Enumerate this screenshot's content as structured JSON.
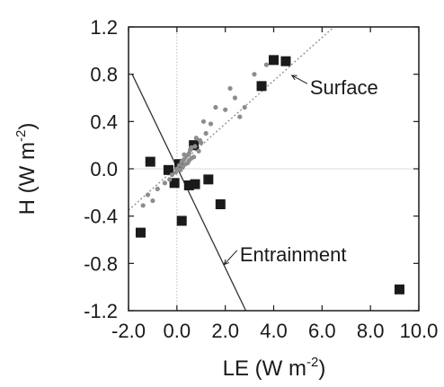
{
  "chart_data": {
    "type": "scatter",
    "xlabel": {
      "base": "LE (W m",
      "sup": "-2",
      "close": ")"
    },
    "ylabel": {
      "base": "H (W m",
      "sup": "-2",
      "close": ")"
    },
    "xlim": [
      -2.0,
      10.0
    ],
    "ylim": [
      -1.2,
      1.2
    ],
    "xticks": [
      -2.0,
      0.0,
      2.0,
      4.0,
      6.0,
      8.0,
      10.0
    ],
    "xtick_labels": [
      "-2.0",
      "0.0",
      "2.0",
      "4.0",
      "6.0",
      "8.0",
      "10.0"
    ],
    "yticks": [
      1.2,
      0.8,
      0.4,
      0.0,
      -0.4,
      -0.8,
      -1.2
    ],
    "ytick_labels": [
      "1.2",
      "0.8",
      "0.4",
      "0.0",
      "-0.4",
      "-0.8",
      "-1.2"
    ],
    "grid": false,
    "zero_lines": true,
    "colors": {
      "squares": "#1a1a1a",
      "dots": "#8c8c8c",
      "surface_line": "#8c8c8c",
      "entrainment_line": "#333333"
    },
    "series": [
      {
        "marker": "square",
        "points": [
          [
            4.0,
            0.92
          ],
          [
            4.5,
            0.91
          ],
          [
            3.5,
            0.7
          ],
          [
            0.7,
            0.2
          ],
          [
            -1.1,
            0.06
          ],
          [
            0.1,
            0.04
          ],
          [
            -0.35,
            -0.01
          ],
          [
            1.3,
            -0.09
          ],
          [
            -0.1,
            -0.12
          ],
          [
            0.5,
            -0.14
          ],
          [
            0.75,
            -0.13
          ],
          [
            1.8,
            -0.3
          ],
          [
            0.2,
            -0.44
          ],
          [
            -1.5,
            -0.54
          ],
          [
            9.2,
            -1.02
          ]
        ]
      },
      {
        "marker": "dot",
        "points": [
          [
            3.7,
            0.88
          ],
          [
            3.2,
            0.8
          ],
          [
            2.2,
            0.68
          ],
          [
            2.4,
            0.6
          ],
          [
            2.8,
            0.52
          ],
          [
            1.6,
            0.52
          ],
          [
            2.0,
            0.5
          ],
          [
            2.6,
            0.44
          ],
          [
            1.1,
            0.4
          ],
          [
            1.4,
            0.38
          ],
          [
            1.2,
            0.3
          ],
          [
            0.8,
            0.26
          ],
          [
            1.0,
            0.22
          ],
          [
            0.6,
            0.18
          ],
          [
            0.9,
            0.15
          ],
          [
            0.5,
            0.13
          ],
          [
            0.4,
            0.11
          ],
          [
            0.7,
            0.1
          ],
          [
            0.3,
            0.08
          ],
          [
            0.5,
            0.07
          ],
          [
            0.2,
            0.06
          ],
          [
            0.35,
            0.04
          ],
          [
            0.1,
            0.03
          ],
          [
            0.25,
            0.02
          ],
          [
            0.0,
            0.0
          ],
          [
            0.15,
            -0.01
          ],
          [
            -0.05,
            -0.03
          ],
          [
            -0.2,
            -0.05
          ],
          [
            -0.3,
            -0.09
          ],
          [
            -0.5,
            -0.12
          ],
          [
            -0.8,
            -0.17
          ],
          [
            -1.2,
            -0.22
          ],
          [
            -1.0,
            -0.27
          ],
          [
            -1.4,
            -0.31
          ],
          [
            0.45,
            0.05
          ],
          [
            0.6,
            0.09
          ],
          [
            0.3,
            0.12
          ],
          [
            0.55,
            0.16
          ],
          [
            0.75,
            0.19
          ],
          [
            0.95,
            0.24
          ]
        ]
      }
    ],
    "reference_lines": [
      {
        "label": "Surface",
        "style": "dotted",
        "from": [
          -2.0,
          -0.35
        ],
        "to": [
          6.6,
          1.22
        ]
      },
      {
        "label": "Entrainment",
        "style": "solid",
        "from": [
          -1.85,
          0.8
        ],
        "to": [
          2.85,
          -1.2
        ]
      }
    ],
    "annotations": [
      {
        "text": "Surface",
        "text_at": [
          5.5,
          0.69
        ],
        "arrow_to": [
          4.75,
          0.79
        ]
      },
      {
        "text": "Entrainment",
        "text_at": [
          2.6,
          -0.72
        ],
        "arrow_to": [
          1.95,
          -0.81
        ]
      }
    ]
  }
}
